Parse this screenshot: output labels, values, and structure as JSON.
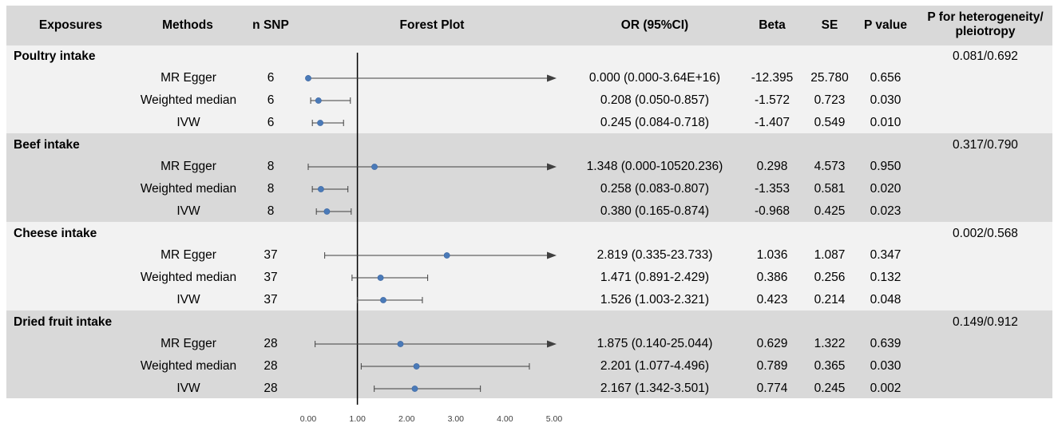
{
  "colors": {
    "header_bg": "#d9d9d9",
    "light_bg": "#f2f2f2",
    "dark_bg": "#d9d9d9",
    "point": "#4a7ab8",
    "line": "#404040"
  },
  "header": {
    "exposures": "Exposures",
    "methods": "Methods",
    "nsnp": "n SNP",
    "forest": "Forest Plot",
    "or": "OR (95%CI)",
    "beta": "Beta",
    "se": "SE",
    "p": "P value",
    "het_line1": "P for heterogeneity/",
    "het_line2": "pleiotropy"
  },
  "groups": [
    {
      "name": "Poultry intake",
      "heterogeneity": "0.081/0.692",
      "rows": [
        {
          "method": "MR Egger",
          "nsnp": "6",
          "or_ci": "0.000 (0.000-3.64E+16)",
          "beta": "-12.395",
          "se": "25.780",
          "p": "0.656"
        },
        {
          "method": "Weighted median",
          "nsnp": "6",
          "or_ci": "0.208 (0.050-0.857)",
          "beta": "-1.572",
          "se": "0.723",
          "p": "0.030"
        },
        {
          "method": "IVW",
          "nsnp": "6",
          "or_ci": "0.245 (0.084-0.718)",
          "beta": "-1.407",
          "se": "0.549",
          "p": "0.010"
        }
      ]
    },
    {
      "name": "Beef intake",
      "heterogeneity": "0.317/0.790",
      "rows": [
        {
          "method": "MR Egger",
          "nsnp": "8",
          "or_ci": "1.348 (0.000-10520.236)",
          "beta": "0.298",
          "se": "4.573",
          "p": "0.950"
        },
        {
          "method": "Weighted median",
          "nsnp": "8",
          "or_ci": "0.258 (0.083-0.807)",
          "beta": "-1.353",
          "se": "0.581",
          "p": "0.020"
        },
        {
          "method": "IVW",
          "nsnp": "8",
          "or_ci": "0.380 (0.165-0.874)",
          "beta": "-0.968",
          "se": "0.425",
          "p": "0.023"
        }
      ]
    },
    {
      "name": "Cheese intake",
      "heterogeneity": "0.002/0.568",
      "rows": [
        {
          "method": "MR Egger",
          "nsnp": "37",
          "or_ci": "2.819 (0.335-23.733)",
          "beta": "1.036",
          "se": "1.087",
          "p": "0.347"
        },
        {
          "method": "Weighted median",
          "nsnp": "37",
          "or_ci": "1.471 (0.891-2.429)",
          "beta": "0.386",
          "se": "0.256",
          "p": "0.132"
        },
        {
          "method": "IVW",
          "nsnp": "37",
          "or_ci": "1.526 (1.003-2.321)",
          "beta": "0.423",
          "se": "0.214",
          "p": "0.048"
        }
      ]
    },
    {
      "name": "Dried fruit intake",
      "heterogeneity": "0.149/0.912",
      "rows": [
        {
          "method": "MR Egger",
          "nsnp": "28",
          "or_ci": "1.875 (0.140-25.044)",
          "beta": "0.629",
          "se": "1.322",
          "p": "0.639"
        },
        {
          "method": "Weighted median",
          "nsnp": "28",
          "or_ci": "2.201 (1.077-4.496)",
          "beta": "0.789",
          "se": "0.365",
          "p": "0.030"
        },
        {
          "method": "IVW",
          "nsnp": "28",
          "or_ci": "2.167 (1.342-3.501)",
          "beta": "0.774",
          "se": "0.245",
          "p": "0.002"
        }
      ]
    }
  ],
  "chart_data": {
    "type": "forest",
    "title": "Forest Plot",
    "xlim": [
      0,
      5
    ],
    "reference_line": 1,
    "tick_labels": [
      "0.00",
      "1.00",
      "2.00",
      "3.00",
      "4.00",
      "5.00"
    ],
    "series": [
      {
        "group": "Poultry intake",
        "method": "MR Egger",
        "or": 0.0,
        "lower": 0.0,
        "upper": 3.64e+16,
        "upper_clipped": true
      },
      {
        "group": "Poultry intake",
        "method": "Weighted median",
        "or": 0.208,
        "lower": 0.05,
        "upper": 0.857,
        "upper_clipped": false
      },
      {
        "group": "Poultry intake",
        "method": "IVW",
        "or": 0.245,
        "lower": 0.084,
        "upper": 0.718,
        "upper_clipped": false
      },
      {
        "group": "Beef intake",
        "method": "MR Egger",
        "or": 1.348,
        "lower": 0.0,
        "upper": 10520.236,
        "upper_clipped": true
      },
      {
        "group": "Beef intake",
        "method": "Weighted median",
        "or": 0.258,
        "lower": 0.083,
        "upper": 0.807,
        "upper_clipped": false
      },
      {
        "group": "Beef intake",
        "method": "IVW",
        "or": 0.38,
        "lower": 0.165,
        "upper": 0.874,
        "upper_clipped": false
      },
      {
        "group": "Cheese intake",
        "method": "MR Egger",
        "or": 2.819,
        "lower": 0.335,
        "upper": 23.733,
        "upper_clipped": true
      },
      {
        "group": "Cheese intake",
        "method": "Weighted median",
        "or": 1.471,
        "lower": 0.891,
        "upper": 2.429,
        "upper_clipped": false
      },
      {
        "group": "Cheese intake",
        "method": "IVW",
        "or": 1.526,
        "lower": 1.003,
        "upper": 2.321,
        "upper_clipped": false
      },
      {
        "group": "Dried fruit intake",
        "method": "MR Egger",
        "or": 1.875,
        "lower": 0.14,
        "upper": 25.044,
        "upper_clipped": true
      },
      {
        "group": "Dried fruit intake",
        "method": "Weighted median",
        "or": 2.201,
        "lower": 1.077,
        "upper": 4.496,
        "upper_clipped": false
      },
      {
        "group": "Dried fruit intake",
        "method": "IVW",
        "or": 2.167,
        "lower": 1.342,
        "upper": 3.501,
        "upper_clipped": false
      }
    ]
  }
}
